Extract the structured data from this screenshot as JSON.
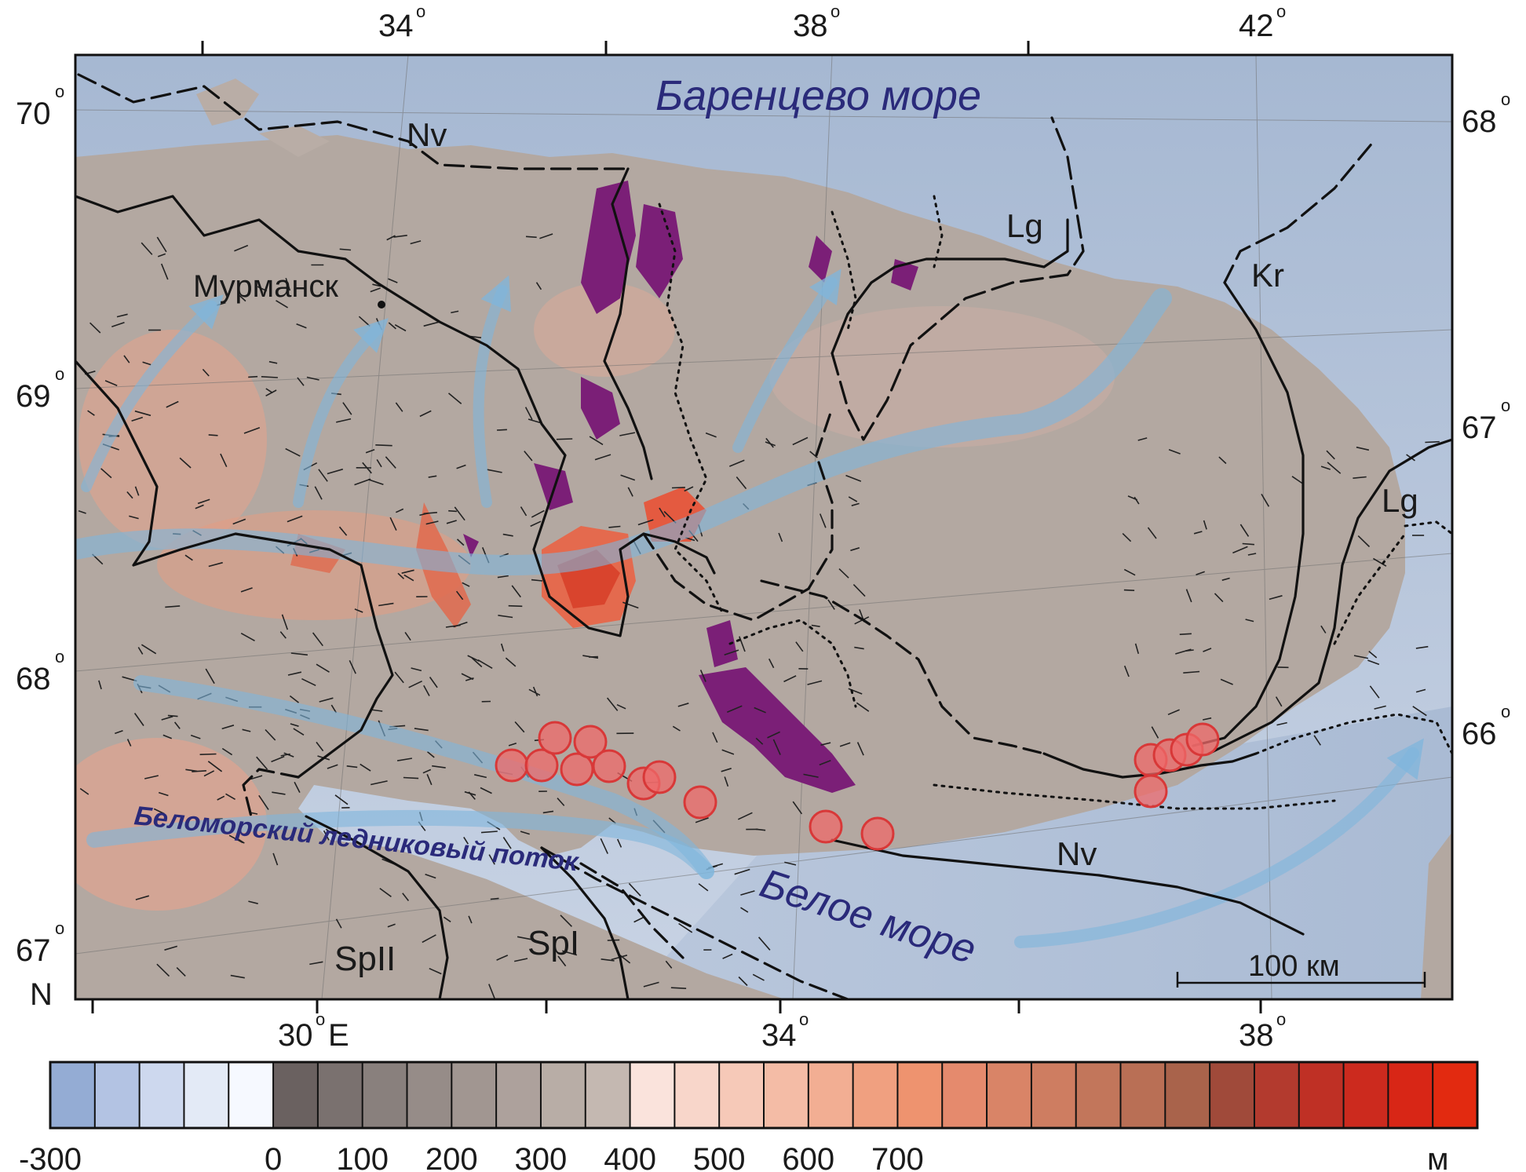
{
  "top_axis": {
    "labels": [
      "34",
      "38",
      "42"
    ],
    "degree": "o"
  },
  "left_axis": {
    "labels": [
      "70",
      "69",
      "68",
      "67"
    ],
    "degree": "o"
  },
  "right_axis": {
    "labels": [
      "68",
      "67",
      "66"
    ],
    "degree": "o"
  },
  "bottom_axis": {
    "labels": [
      "30",
      "34",
      "38"
    ],
    "degree": "o",
    "east_suffix": "E",
    "north_label": "N"
  },
  "seas": {
    "barents": "Баренцево море",
    "white": "Белое море"
  },
  "city": "Мурманск",
  "ice_stream": "Беломорский ледниковый поток",
  "moraines": {
    "nv_north": "Nv",
    "nv_south": "Nv",
    "lg_north": "Lg",
    "lg_east": "Lg",
    "kr": "Kr",
    "spii": "SpII",
    "spi": "SpI"
  },
  "scale_bar": "100 км",
  "legend": {
    "ticks": [
      "-300",
      "0",
      "100",
      "200",
      "300",
      "400",
      "500",
      "600",
      "700"
    ],
    "unit": "м",
    "colors": [
      "#94acd4",
      "#b3c3e3",
      "#cdd8ee",
      "#e3eaf6",
      "#f6f9ff",
      "#6a6160",
      "#7a716f",
      "#89807d",
      "#968c88",
      "#a19691",
      "#ada19c",
      "#b8ada6",
      "#c4b8b1",
      "#fae3dc",
      "#f8d6ca",
      "#f6c9b8",
      "#f4bca6",
      "#f2ae93",
      "#f0a080",
      "#ee936f",
      "#e58a6d",
      "#d98467",
      "#ce7d61",
      "#c2765b",
      "#b96f55",
      "#a9634b",
      "#a04a3a",
      "#b33a2e",
      "#bf3025",
      "#cc2a1e",
      "#d82616",
      "#e22a10"
    ]
  },
  "colors": {
    "sea_deep": "#9fb3cf",
    "sea_shallow": "#c9d5e6",
    "land": "#b5aaa3",
    "highland": "#e89a80",
    "peak": "#e04a30",
    "intrusions": "#7b1f77",
    "ice_flow": "#7fb6dc",
    "site_markers": "#ef6a6a"
  }
}
